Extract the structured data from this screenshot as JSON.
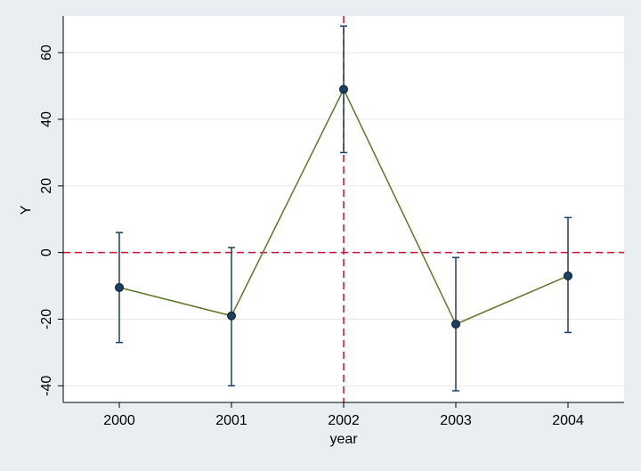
{
  "chart_data": {
    "type": "line",
    "title": "",
    "xlabel": "year",
    "ylabel": "Y",
    "x": [
      2000,
      2001,
      2002,
      2003,
      2004
    ],
    "series": [
      {
        "values": [
          -10.5,
          -19,
          49,
          -21.5,
          -7
        ],
        "ci_lower": [
          -27,
          -40,
          30,
          -41.5,
          -24
        ],
        "ci_upper": [
          6,
          1.5,
          68,
          -1.5,
          10.5
        ],
        "color": "#5a7a2a",
        "marker_color": "#1e4060"
      }
    ],
    "xlim": [
      1999.5,
      2004.5
    ],
    "ylim": [
      -45,
      71
    ],
    "x_ticks": [
      "2000",
      "2001",
      "2002",
      "2003",
      "2004"
    ],
    "y_ticks": [
      "-40",
      "-20",
      "0",
      "20",
      "40",
      "60"
    ],
    "reference_lines": [
      {
        "axis": "y",
        "value": 0,
        "style": "dashed",
        "color": "#cc1133"
      },
      {
        "axis": "x",
        "value": 2002,
        "style": "dashed",
        "color": "#cc1133"
      }
    ],
    "grid": true,
    "background": "#e8eef2",
    "plot_background": "#ffffff",
    "gridline_color": "#e8e8e8",
    "errorbar_color": "#1e4060"
  }
}
